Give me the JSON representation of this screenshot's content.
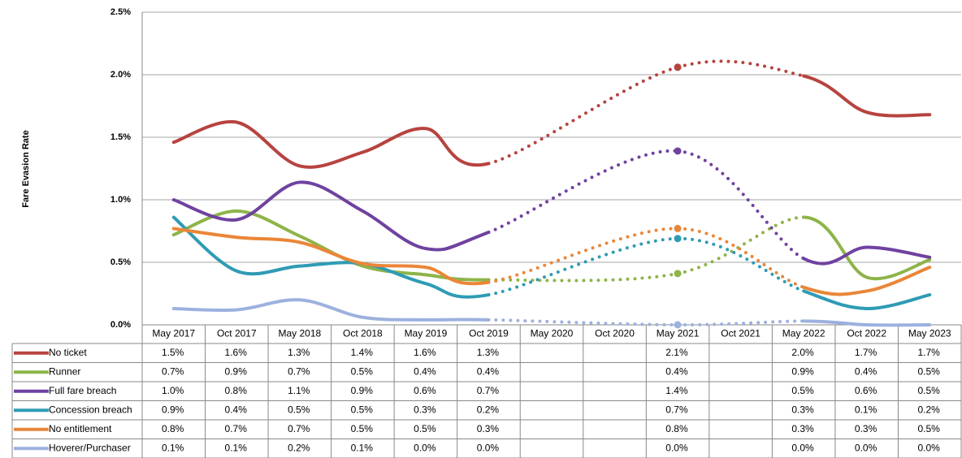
{
  "chart_data": {
    "type": "line",
    "y_label": "Fare Evasion Rate",
    "categories": [
      "May 2017",
      "Oct 2017",
      "May 2018",
      "Oct 2018",
      "May 2019",
      "Oct 2019",
      "May 2020",
      "Oct 2020",
      "May 2021",
      "Oct 2021",
      "May 2022",
      "Oct 2022",
      "May 2023"
    ],
    "ylim": [
      0,
      2.5
    ],
    "yticks": [
      {
        "value": 0,
        "label": "0.0%"
      },
      {
        "value": 0.5,
        "label": "0.5%"
      },
      {
        "value": 1,
        "label": "1.0%"
      },
      {
        "value": 1.5,
        "label": "1.5%"
      },
      {
        "value": 2,
        "label": "2.0%"
      },
      {
        "value": 2.5,
        "label": "2.5%"
      }
    ],
    "grid": true,
    "series": [
      {
        "name": "No ticket",
        "color": "#b7433f",
        "values": [
          1.46,
          1.62,
          1.27,
          1.38,
          1.57,
          1.29,
          null,
          null,
          2.06,
          null,
          1.99,
          1.7,
          1.68
        ],
        "value_labels": [
          "1.5%",
          "1.6%",
          "1.3%",
          "1.4%",
          "1.6%",
          "1.3%",
          null,
          null,
          "2.1%",
          null,
          "2.0%",
          "1.7%",
          "1.7%"
        ]
      },
      {
        "name": "Runner",
        "color": "#8db449",
        "values": [
          0.72,
          0.91,
          0.71,
          0.47,
          0.4,
          0.36,
          null,
          null,
          0.41,
          null,
          0.86,
          0.38,
          0.52
        ],
        "value_labels": [
          "0.7%",
          "0.9%",
          "0.7%",
          "0.5%",
          "0.4%",
          "0.4%",
          null,
          null,
          "0.4%",
          null,
          "0.9%",
          "0.4%",
          "0.5%"
        ]
      },
      {
        "name": "Full fare breach",
        "color": "#6f42a0",
        "values": [
          1.0,
          0.84,
          1.14,
          0.91,
          0.61,
          0.74,
          null,
          null,
          1.39,
          null,
          0.53,
          0.62,
          0.54
        ],
        "value_labels": [
          "1.0%",
          "0.8%",
          "1.1%",
          "0.9%",
          "0.6%",
          "0.7%",
          null,
          null,
          "1.4%",
          null,
          "0.5%",
          "0.6%",
          "0.5%"
        ]
      },
      {
        "name": "Concession breach",
        "color": "#2f9bb5",
        "values": [
          0.86,
          0.43,
          0.47,
          0.49,
          0.33,
          0.24,
          null,
          null,
          0.69,
          null,
          0.27,
          0.13,
          0.24
        ],
        "value_labels": [
          "0.9%",
          "0.4%",
          "0.5%",
          "0.5%",
          "0.3%",
          "0.2%",
          null,
          null,
          "0.7%",
          null,
          "0.3%",
          "0.1%",
          "0.2%"
        ]
      },
      {
        "name": "No entitlement",
        "color": "#ea8638",
        "values": [
          0.77,
          0.7,
          0.66,
          0.49,
          0.46,
          0.34,
          null,
          null,
          0.77,
          null,
          0.3,
          0.27,
          0.46
        ],
        "value_labels": [
          "0.8%",
          "0.7%",
          "0.7%",
          "0.5%",
          "0.5%",
          "0.3%",
          null,
          null,
          "0.8%",
          null,
          "0.3%",
          "0.3%",
          "0.5%"
        ]
      },
      {
        "name": "Hoverer/Purchaser",
        "color": "#9cb1de",
        "values": [
          0.13,
          0.12,
          0.2,
          0.06,
          0.04,
          0.04,
          null,
          null,
          0.0,
          null,
          0.03,
          0.0,
          0.0
        ],
        "value_labels": [
          "0.1%",
          "0.1%",
          "0.2%",
          "0.1%",
          "0.0%",
          "0.0%",
          null,
          null,
          "0.0%",
          null,
          "0.0%",
          "0.0%",
          "0.0%"
        ]
      }
    ]
  }
}
